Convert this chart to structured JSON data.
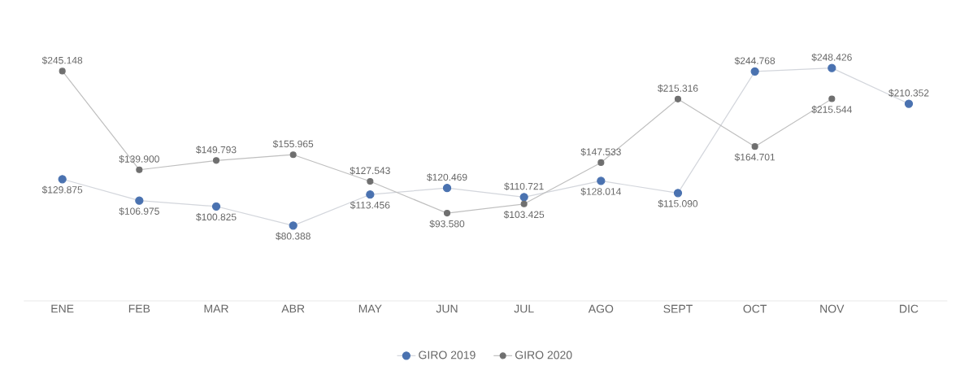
{
  "chart_data": {
    "type": "line",
    "categories": [
      "ENE",
      "FEB",
      "MAR",
      "ABR",
      "MAY",
      "JUN",
      "JUL",
      "AGO",
      "SEPT",
      "OCT",
      "NOV",
      "DIC"
    ],
    "series": [
      {
        "name": "GIRO 2019",
        "color": "#4a72b0",
        "values": [
          129875,
          106975,
          100825,
          80388,
          113456,
          120469,
          110721,
          128014,
          115090,
          244768,
          248426,
          210352
        ],
        "value_labels": [
          "$129.875",
          "$106.975",
          "$100.825",
          "$80.388",
          "$113.456",
          "$120.469",
          "$110.721",
          "$128.014",
          "$115.090",
          "$244.768",
          "$248.426",
          "$210.352"
        ]
      },
      {
        "name": "GIRO 2020",
        "color": "#6f6f6f",
        "values": [
          245148,
          139900,
          149793,
          155965,
          127543,
          93580,
          103425,
          147533,
          215316,
          164701,
          215544,
          null
        ],
        "value_labels": [
          "$245.148",
          "$139.900",
          "$149.793",
          "$155.965",
          "$127.543",
          "$93.580",
          "$103.425",
          "$147.533",
          "$215.316",
          "$164.701",
          "$215.544",
          null
        ]
      }
    ],
    "marker": "circle",
    "legend": "bottom",
    "grid": false
  }
}
